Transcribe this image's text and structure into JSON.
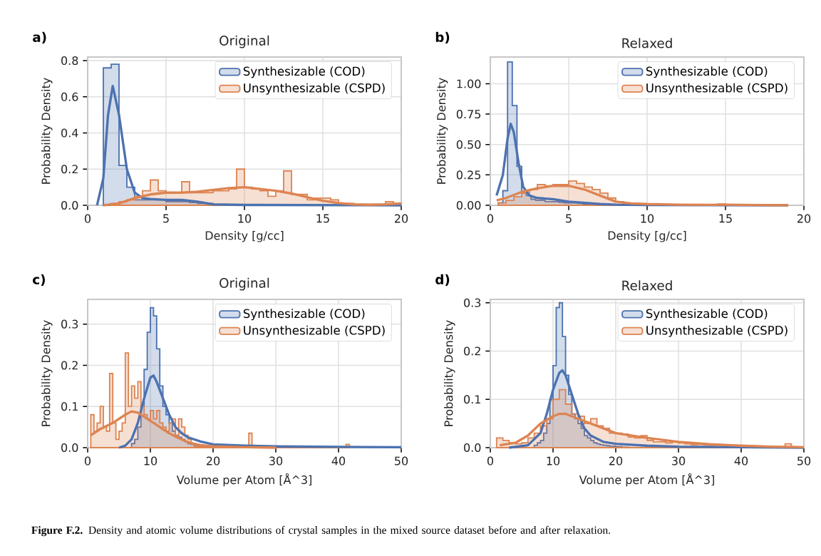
{
  "chart_data": [
    {
      "type": "histogram",
      "title": "Original",
      "xlabel": "Density [g/cc]",
      "ylabel": "Probability Density",
      "xlim": [
        0,
        20
      ],
      "ylim": [
        0,
        0.82
      ],
      "xticks": [
        0,
        5,
        10,
        15,
        20
      ],
      "yticks": [
        {
          "value": 0,
          "label": "0.0"
        },
        0.2,
        0.4,
        0.6,
        0.8
      ],
      "grid": true,
      "legend": "top right",
      "annotations": [
        "a)"
      ],
      "series": [
        {
          "name": "Synthesizable (COD)",
          "color": "#4c72b0",
          "type": "histogram",
          "bins": [
            1.0,
            1.5,
            2.0,
            2.5,
            3.0,
            3.5,
            4.0,
            4.5,
            5.0,
            5.5,
            6.0,
            6.5,
            7.0,
            7.5,
            8.0
          ],
          "values": [
            0.76,
            0.78,
            0.22,
            0.1,
            0.03,
            0.03,
            0.03,
            0.03,
            0.02,
            0.02,
            0.02,
            0.015,
            0.01,
            0.01
          ]
        },
        {
          "name": "Unsynthesizable (CSPD)",
          "color": "#dd8452",
          "type": "histogram",
          "bins": [
            1.5,
            2.0,
            2.5,
            3.0,
            3.5,
            4.0,
            4.5,
            5.0,
            5.5,
            6.0,
            6.5,
            7.0,
            7.5,
            8.0,
            8.5,
            9.0,
            9.5,
            10.0,
            10.5,
            11.0,
            11.5,
            12.0,
            12.5,
            13.0,
            13.5,
            14.0,
            14.5,
            15.0,
            15.5,
            16.0,
            16.5,
            17.0,
            17.5,
            18.0,
            18.5,
            19.0,
            19.5,
            20.0
          ],
          "values": [
            0.01,
            0.02,
            0.03,
            0.05,
            0.08,
            0.14,
            0.08,
            0.07,
            0.07,
            0.13,
            0.07,
            0.07,
            0.07,
            0.08,
            0.08,
            0.09,
            0.2,
            0.1,
            0.09,
            0.08,
            0.05,
            0.08,
            0.19,
            0.06,
            0.06,
            0.03,
            0.04,
            0.04,
            0.03,
            0.01,
            0.01,
            0.005,
            0.005,
            0.005,
            0.005,
            0.02,
            0.01
          ]
        },
        {
          "color": "#4c72b0",
          "type": "line",
          "x": [
            0.6,
            1.0,
            1.3,
            1.6,
            2.0,
            2.5,
            3.0,
            3.5,
            4.0,
            5.0,
            6.0,
            7.0,
            8.0,
            10.0,
            20.0
          ],
          "values": [
            0.0,
            0.15,
            0.5,
            0.66,
            0.5,
            0.2,
            0.07,
            0.04,
            0.035,
            0.03,
            0.03,
            0.02,
            0.005,
            0.002,
            0.0
          ]
        },
        {
          "color": "#dd8452",
          "type": "line",
          "x": [
            1,
            2,
            3,
            4,
            5,
            6,
            7,
            8,
            9,
            10,
            11,
            12,
            13,
            14,
            15,
            16,
            17,
            18,
            19,
            20
          ],
          "values": [
            0.0,
            0.01,
            0.04,
            0.06,
            0.07,
            0.07,
            0.075,
            0.085,
            0.095,
            0.1,
            0.09,
            0.08,
            0.065,
            0.045,
            0.025,
            0.012,
            0.005,
            0.003,
            0.005,
            0.01
          ]
        }
      ]
    },
    {
      "type": "histogram",
      "title": "Relaxed",
      "xlabel": "Density [g/cc]",
      "ylabel": "Probability Density",
      "xlim": [
        0,
        20
      ],
      "ylim": [
        0,
        1.22
      ],
      "xticks": [
        0,
        5,
        10,
        15,
        20
      ],
      "yticks": [
        {
          "value": 0,
          "label": "0.00"
        },
        0.25,
        {
          "value": 0.5,
          "label": "0.50"
        },
        0.75,
        {
          "value": 1,
          "label": "1.00"
        }
      ],
      "grid": true,
      "legend": "top right",
      "annotations": [
        "b)"
      ],
      "series": [
        {
          "name": "Synthesizable (COD)",
          "color": "#4c72b0",
          "type": "histogram",
          "bins": [
            0.5,
            0.8,
            1.1,
            1.4,
            1.7,
            2.0,
            2.3,
            2.6,
            2.9,
            3.2,
            3.5,
            3.8,
            4.1,
            4.4,
            4.7,
            5.0,
            5.3,
            5.6,
            5.9,
            6.2,
            6.5,
            6.8,
            7.1,
            7.4,
            7.7
          ],
          "values": [
            0.02,
            0.12,
            1.18,
            0.82,
            0.32,
            0.1,
            0.08,
            0.05,
            0.04,
            0.04,
            0.03,
            0.03,
            0.03,
            0.025,
            0.02,
            0.02,
            0.02,
            0.015,
            0.01,
            0.01,
            0.01,
            0.005,
            0.005,
            0.005
          ]
        },
        {
          "name": "Unsynthesizable (CSPD)",
          "color": "#dd8452",
          "type": "histogram",
          "bins": [
            0.5,
            1.0,
            1.5,
            2.0,
            2.5,
            3.0,
            3.5,
            4.0,
            4.5,
            5.0,
            5.5,
            6.0,
            6.5,
            7.0,
            7.5,
            8.0,
            8.5,
            9.0,
            9.5,
            10.0,
            10.5,
            11.0,
            11.5,
            12.0,
            12.5,
            13.0,
            13.5,
            14.0,
            14.5,
            15.0
          ],
          "values": [
            0.02,
            0.04,
            0.07,
            0.1,
            0.13,
            0.17,
            0.16,
            0.17,
            0.17,
            0.2,
            0.18,
            0.15,
            0.13,
            0.1,
            0.06,
            0.03,
            0.015,
            0.01,
            0.01,
            0.008,
            0.008,
            0.005,
            0.004,
            0.004,
            0.003,
            0.003,
            0.003,
            0.003,
            0.01
          ]
        },
        {
          "color": "#4c72b0",
          "type": "line",
          "x": [
            0.4,
            0.8,
            1.1,
            1.3,
            1.5,
            1.8,
            2.1,
            2.5,
            3,
            4,
            5,
            6,
            7,
            8,
            10,
            19
          ],
          "values": [
            0.08,
            0.25,
            0.55,
            0.67,
            0.6,
            0.35,
            0.15,
            0.08,
            0.06,
            0.05,
            0.03,
            0.02,
            0.01,
            0.005,
            0.002,
            0.0
          ]
        },
        {
          "color": "#dd8452",
          "type": "line",
          "x": [
            0.4,
            1,
            2,
            3,
            4,
            5,
            6,
            7,
            8,
            9,
            10,
            11,
            12,
            14,
            15,
            17,
            19
          ],
          "values": [
            0.04,
            0.06,
            0.11,
            0.14,
            0.16,
            0.16,
            0.13,
            0.08,
            0.03,
            0.015,
            0.01,
            0.008,
            0.005,
            0.004,
            0.005,
            0.002,
            0.0
          ]
        }
      ]
    },
    {
      "type": "histogram",
      "title": "Original",
      "xlabel": "Volume per Atom [Å^3]",
      "ylabel": "Probability Density",
      "xlim": [
        0,
        50
      ],
      "ylim": [
        0,
        0.36
      ],
      "xticks": [
        0,
        10,
        20,
        30,
        40,
        50
      ],
      "yticks": [
        {
          "value": 0,
          "label": "0.0"
        },
        0.1,
        0.2,
        0.3
      ],
      "grid": true,
      "legend": "top right",
      "annotations": [
        "c)"
      ],
      "series": [
        {
          "name": "Synthesizable (COD)",
          "color": "#4c72b0",
          "type": "histogram",
          "bins": [
            7.0,
            7.5,
            8.0,
            8.5,
            9.0,
            9.5,
            10.0,
            10.5,
            11.0,
            11.5,
            12.0,
            12.5,
            13.0,
            13.5,
            14.0,
            14.5,
            15.0,
            15.5,
            16.0,
            16.5,
            17.0,
            17.5,
            18.0,
            18.5,
            19.0,
            19.5,
            20.0
          ],
          "values": [
            0.01,
            0.02,
            0.05,
            0.1,
            0.19,
            0.28,
            0.34,
            0.32,
            0.24,
            0.15,
            0.1,
            0.08,
            0.06,
            0.04,
            0.03,
            0.025,
            0.02,
            0.015,
            0.01,
            0.008,
            0.006,
            0.005,
            0.004,
            0.003,
            0.002,
            0.002
          ]
        },
        {
          "name": "Unsynthesizable (CSPD)",
          "color": "#dd8452",
          "type": "histogram",
          "bins": [
            0.5,
            1.0,
            1.5,
            2.0,
            2.5,
            3.0,
            3.5,
            4.0,
            4.5,
            5.0,
            5.5,
            6.0,
            6.5,
            7.0,
            7.5,
            8.0,
            8.5,
            9.0,
            9.5,
            10.0,
            10.5,
            11.0,
            11.5,
            12.0,
            12.5,
            13.0,
            13.5,
            14.0,
            14.5,
            15.0,
            15.5,
            16.0,
            16.5,
            17.0,
            25.7,
            26.2,
            41.2,
            41.7
          ],
          "values": [
            0.08,
            0.04,
            0.06,
            0.1,
            0.05,
            0.04,
            0.18,
            0.06,
            0.02,
            0.04,
            0.06,
            0.23,
            0.1,
            0.15,
            0.12,
            0.16,
            0.1,
            0.08,
            0.07,
            0.09,
            0.07,
            0.09,
            0.06,
            0.05,
            0.04,
            0.06,
            0.07,
            0.03,
            0.07,
            0.05,
            0.03,
            0.02,
            0.01,
            0.003,
            0.035,
            0.001,
            0.008
          ]
        },
        {
          "color": "#4c72b0",
          "type": "line",
          "x": [
            5,
            6,
            7,
            8,
            9,
            10,
            10.5,
            11,
            12,
            13,
            14,
            15,
            16,
            18,
            20,
            25,
            30,
            40,
            50
          ],
          "values": [
            0.0,
            0.005,
            0.02,
            0.06,
            0.12,
            0.17,
            0.175,
            0.16,
            0.12,
            0.08,
            0.05,
            0.035,
            0.025,
            0.015,
            0.008,
            0.005,
            0.003,
            0.002,
            0.001
          ]
        },
        {
          "color": "#dd8452",
          "type": "line",
          "x": [
            0.5,
            2,
            4,
            6,
            7,
            8,
            9,
            10,
            11,
            12,
            13,
            14,
            15,
            16,
            18,
            20,
            25,
            30
          ],
          "values": [
            0.03,
            0.045,
            0.06,
            0.08,
            0.088,
            0.085,
            0.075,
            0.065,
            0.055,
            0.045,
            0.035,
            0.027,
            0.02,
            0.013,
            0.006,
            0.003,
            0.001,
            0.0
          ]
        }
      ]
    },
    {
      "type": "histogram",
      "title": "Relaxed",
      "xlabel": "Volume per Atom [Å^3]",
      "ylabel": "Probability Density",
      "xlim": [
        0,
        50
      ],
      "ylim": [
        0,
        0.307
      ],
      "xticks": [
        0,
        10,
        20,
        30,
        40,
        50
      ],
      "yticks": [
        {
          "value": 0,
          "label": "0.0"
        },
        0.1,
        0.2,
        0.3
      ],
      "grid": true,
      "legend": "top right",
      "annotations": [
        "d)",
        "**Figure F.2.** Density and atomic volume distributions of crystal samples in the mixed source dataset before and after relaxation."
      ],
      "series": [
        {
          "name": "Synthesizable (COD)",
          "color": "#4c72b0",
          "type": "histogram",
          "bins": [
            7.0,
            7.5,
            8.0,
            8.5,
            9.0,
            9.5,
            10.0,
            10.5,
            11.0,
            11.5,
            12.0,
            12.5,
            13.0,
            13.5,
            14.0,
            14.5,
            15.0,
            15.5,
            16.0,
            16.5,
            17.0,
            17.5,
            18.0,
            18.5,
            19.0,
            19.5,
            20.0,
            20.5,
            21.0,
            21.5,
            22.0
          ],
          "values": [
            0.005,
            0.01,
            0.015,
            0.03,
            0.05,
            0.1,
            0.17,
            0.29,
            0.3,
            0.23,
            0.15,
            0.11,
            0.07,
            0.06,
            0.05,
            0.04,
            0.025,
            0.02,
            0.015,
            0.01,
            0.008,
            0.006,
            0.005,
            0.004,
            0.003,
            0.003,
            0.002,
            0.002,
            0.001,
            0.001
          ]
        },
        {
          "name": "Unsynthesizable (CSPD)",
          "color": "#dd8452",
          "type": "histogram",
          "bins": [
            1,
            2,
            3,
            4,
            5,
            6,
            7,
            8,
            9,
            10,
            11,
            12,
            13,
            14,
            15,
            16,
            17,
            18,
            19,
            20,
            21,
            22,
            23,
            24,
            25,
            26,
            27,
            28,
            29,
            30,
            31,
            32,
            33,
            34,
            35,
            36,
            37,
            38,
            39,
            40,
            41,
            42,
            43,
            44,
            45,
            46,
            47,
            48,
            49
          ],
          "values": [
            0.02,
            0.015,
            0.01,
            0.008,
            0.01,
            0.02,
            0.03,
            0.045,
            0.06,
            0.1,
            0.12,
            0.09,
            0.07,
            0.065,
            0.05,
            0.06,
            0.045,
            0.04,
            0.03,
            0.03,
            0.028,
            0.022,
            0.02,
            0.025,
            0.015,
            0.012,
            0.012,
            0.01,
            0.012,
            0.01,
            0.008,
            0.006,
            0.007,
            0.006,
            0.005,
            0.006,
            0.005,
            0.004,
            0.003,
            0.003,
            0.004,
            0.002,
            0.002,
            0.002,
            0.002,
            0.002,
            0.008,
            0.002
          ]
        },
        {
          "color": "#4c72b0",
          "type": "line",
          "x": [
            3,
            6,
            8,
            9,
            10,
            11,
            11.5,
            12,
            13,
            14,
            15,
            16,
            18,
            20,
            25,
            30,
            40,
            50
          ],
          "values": [
            0.0,
            0.005,
            0.03,
            0.07,
            0.12,
            0.155,
            0.16,
            0.15,
            0.11,
            0.07,
            0.04,
            0.025,
            0.012,
            0.008,
            0.004,
            0.002,
            0.001,
            0.0
          ]
        },
        {
          "color": "#dd8452",
          "type": "line",
          "x": [
            1.5,
            4,
            6,
            8,
            10,
            11,
            12,
            13,
            15,
            18,
            20,
            25,
            30,
            35,
            40,
            45,
            50
          ],
          "values": [
            0.005,
            0.01,
            0.025,
            0.05,
            0.065,
            0.07,
            0.07,
            0.065,
            0.055,
            0.04,
            0.03,
            0.02,
            0.012,
            0.007,
            0.004,
            0.002,
            0.001
          ]
        }
      ]
    }
  ]
}
